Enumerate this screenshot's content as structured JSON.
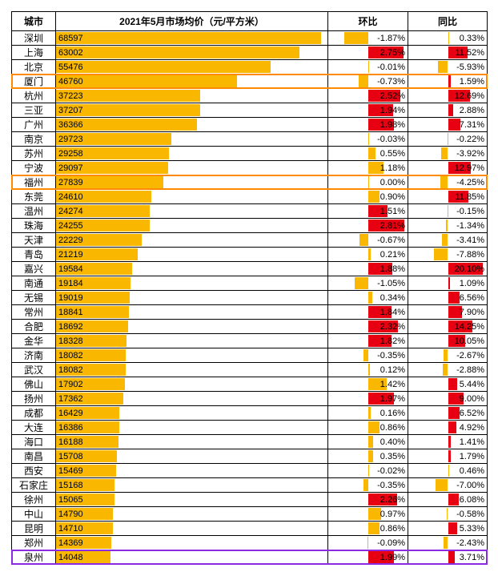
{
  "headers": {
    "city": "城市",
    "price": "2021年5月市场均价（元/平方米）",
    "mom": "环比",
    "yoy": "同比"
  },
  "columns": {
    "city_width": 55,
    "price_width": 340,
    "mom_width": 100,
    "yoy_width": 99
  },
  "colors": {
    "bar_price": "#f9b700",
    "bar_pos_low": "#f9b700",
    "bar_pos_high": "#e60012",
    "bar_neg": "#f9b700",
    "row_border": "#000000",
    "highlight_orange": "#ff8a00",
    "highlight_purple": "#8a2be2",
    "background": "#ffffff",
    "text": "#000000"
  },
  "price_axis_max": 70000,
  "mom_threshold_red": 1.5,
  "mom_axis_max": 3.0,
  "yoy_threshold_red": 1.0,
  "yoy_axis_max": 22.0,
  "rows": [
    {
      "city": "深圳",
      "price": 68597,
      "mom": -1.87,
      "yoy": 0.33
    },
    {
      "city": "上海",
      "price": 63002,
      "mom": 2.75,
      "yoy": 11.52
    },
    {
      "city": "北京",
      "price": 55476,
      "mom": -0.01,
      "yoy": -5.93
    },
    {
      "city": "厦门",
      "price": 46760,
      "mom": -0.73,
      "yoy": 1.59,
      "highlight": "orange"
    },
    {
      "city": "杭州",
      "price": 37223,
      "mom": 2.52,
      "yoy": 12.69
    },
    {
      "city": "三亚",
      "price": 37207,
      "mom": 1.94,
      "yoy": 2.88
    },
    {
      "city": "广州",
      "price": 36366,
      "mom": 1.98,
      "yoy": 7.31
    },
    {
      "city": "南京",
      "price": 29723,
      "mom": -0.03,
      "yoy": -0.22
    },
    {
      "city": "苏州",
      "price": 29258,
      "mom": 0.55,
      "yoy": -3.92
    },
    {
      "city": "宁波",
      "price": 29097,
      "mom": 1.18,
      "yoy": 12.97
    },
    {
      "city": "福州",
      "price": 27839,
      "mom": 0.0,
      "yoy": -4.25,
      "highlight": "orange"
    },
    {
      "city": "东莞",
      "price": 24610,
      "mom": 0.9,
      "yoy": 11.85
    },
    {
      "city": "温州",
      "price": 24274,
      "mom": 1.51,
      "yoy": -0.15
    },
    {
      "city": "珠海",
      "price": 24255,
      "mom": 2.81,
      "yoy": -1.34
    },
    {
      "city": "天津",
      "price": 22229,
      "mom": -0.67,
      "yoy": -3.41
    },
    {
      "city": "青岛",
      "price": 21219,
      "mom": 0.21,
      "yoy": -7.88
    },
    {
      "city": "嘉兴",
      "price": 19584,
      "mom": 1.88,
      "yoy": 20.1
    },
    {
      "city": "南通",
      "price": 19184,
      "mom": -1.05,
      "yoy": 1.09
    },
    {
      "city": "无锡",
      "price": 19019,
      "mom": 0.34,
      "yoy": 6.56
    },
    {
      "city": "常州",
      "price": 18841,
      "mom": 1.84,
      "yoy": 7.9
    },
    {
      "city": "合肥",
      "price": 18692,
      "mom": 2.32,
      "yoy": 14.25
    },
    {
      "city": "金华",
      "price": 18328,
      "mom": 1.82,
      "yoy": 10.05
    },
    {
      "city": "济南",
      "price": 18082,
      "mom": -0.35,
      "yoy": -2.67
    },
    {
      "city": "武汉",
      "price": 18082,
      "mom": 0.12,
      "yoy": -2.88
    },
    {
      "city": "佛山",
      "price": 17902,
      "mom": 1.42,
      "yoy": 5.44
    },
    {
      "city": "扬州",
      "price": 17362,
      "mom": 1.97,
      "yoy": 9.0
    },
    {
      "city": "成都",
      "price": 16429,
      "mom": 0.16,
      "yoy": 6.52
    },
    {
      "city": "大连",
      "price": 16386,
      "mom": 0.86,
      "yoy": 4.92
    },
    {
      "city": "海口",
      "price": 16188,
      "mom": 0.4,
      "yoy": 1.41
    },
    {
      "city": "南昌",
      "price": 15708,
      "mom": 0.35,
      "yoy": 1.79
    },
    {
      "city": "西安",
      "price": 15469,
      "mom": -0.02,
      "yoy": 0.46
    },
    {
      "city": "石家庄",
      "price": 15168,
      "mom": -0.35,
      "yoy": -7.0
    },
    {
      "city": "徐州",
      "price": 15065,
      "mom": 2.26,
      "yoy": 6.08
    },
    {
      "city": "中山",
      "price": 14790,
      "mom": 0.97,
      "yoy": -0.58
    },
    {
      "city": "昆明",
      "price": 14710,
      "mom": 0.86,
      "yoy": 5.33
    },
    {
      "city": "郑州",
      "price": 14369,
      "mom": -0.09,
      "yoy": -2.43
    },
    {
      "city": "泉州",
      "price": 14048,
      "mom": 1.99,
      "yoy": 3.71,
      "highlight": "purple"
    }
  ]
}
